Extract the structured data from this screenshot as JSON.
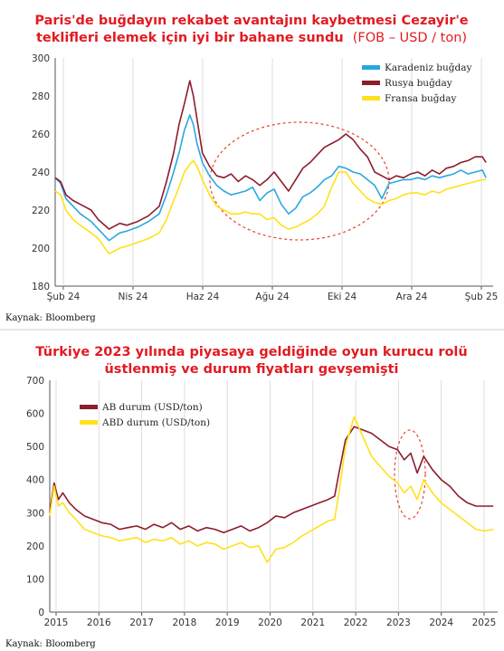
{
  "chart_data": [
    {
      "type": "line",
      "title": "Paris'de buğdayın rekabet avantajını kaybetmesi Cezayir'e",
      "title_line2": "teklifleri elemek için iyi bir bahane sundu",
      "title_suffix": "(FOB – USD / ton)",
      "source": "Kaynak: Bloomberg",
      "ylim": [
        180,
        300
      ],
      "yticks": [
        180,
        200,
        220,
        240,
        260,
        280,
        300
      ],
      "xticks": [
        "Şub 24",
        "Nis 24",
        "Haz 24",
        "Ağu 24",
        "Eki 24",
        "Ara 24",
        "Şub 25"
      ],
      "xlim": [
        0,
        12.2
      ],
      "grid": "vertical",
      "legend_position": "top-right",
      "annotation": "dashed ellipse highlighting Jul 24 – Dec 24",
      "series": [
        {
          "name": "Karadeniz buğday",
          "color": "#29a8e0",
          "x": [
            0.0,
            0.15,
            0.3,
            0.5,
            0.7,
            1.0,
            1.2,
            1.5,
            1.8,
            2.0,
            2.3,
            2.6,
            2.9,
            3.1,
            3.3,
            3.45,
            3.6,
            3.75,
            3.85,
            3.95,
            4.1,
            4.3,
            4.5,
            4.7,
            4.9,
            5.1,
            5.3,
            5.5,
            5.7,
            5.9,
            6.1,
            6.3,
            6.5,
            6.7,
            6.9,
            7.1,
            7.3,
            7.5,
            7.7,
            7.9,
            8.1,
            8.3,
            8.5,
            8.7,
            8.9,
            9.1,
            9.3,
            9.5,
            9.7,
            9.9,
            10.1,
            10.3,
            10.5,
            10.7,
            10.9,
            11.1,
            11.3,
            11.5,
            11.7,
            11.9,
            12.0
          ],
          "y": [
            237,
            234,
            226,
            222,
            218,
            214,
            210,
            204,
            208,
            209,
            211,
            214,
            218,
            228,
            240,
            250,
            262,
            270,
            265,
            255,
            245,
            238,
            233,
            230,
            228,
            229,
            230,
            232,
            225,
            229,
            231,
            223,
            218,
            221,
            227,
            229,
            232,
            236,
            238,
            243,
            242,
            240,
            239,
            236,
            233,
            226,
            234,
            235,
            236,
            236,
            237,
            236,
            238,
            237,
            238,
            239,
            241,
            239,
            240,
            241,
            237
          ]
        },
        {
          "name": "Rusya buğday",
          "color": "#8c1d2c",
          "x": [
            0.0,
            0.15,
            0.3,
            0.5,
            0.7,
            1.0,
            1.2,
            1.5,
            1.8,
            2.0,
            2.3,
            2.6,
            2.9,
            3.1,
            3.3,
            3.45,
            3.6,
            3.75,
            3.85,
            3.95,
            4.1,
            4.3,
            4.5,
            4.7,
            4.9,
            5.1,
            5.3,
            5.5,
            5.7,
            5.9,
            6.1,
            6.3,
            6.5,
            6.7,
            6.9,
            7.1,
            7.3,
            7.5,
            7.7,
            7.9,
            8.1,
            8.3,
            8.5,
            8.7,
            8.9,
            9.1,
            9.3,
            9.5,
            9.7,
            9.9,
            10.1,
            10.3,
            10.5,
            10.7,
            10.9,
            11.1,
            11.3,
            11.5,
            11.7,
            11.9,
            12.0
          ],
          "y": [
            237,
            235,
            228,
            225,
            223,
            220,
            215,
            210,
            213,
            212,
            214,
            217,
            222,
            235,
            250,
            265,
            276,
            288,
            280,
            268,
            250,
            243,
            238,
            237,
            239,
            235,
            238,
            236,
            233,
            236,
            240,
            235,
            230,
            236,
            242,
            245,
            249,
            253,
            255,
            257,
            260,
            257,
            252,
            248,
            240,
            238,
            236,
            238,
            237,
            239,
            240,
            238,
            241,
            239,
            242,
            243,
            245,
            246,
            248,
            248,
            245
          ]
        },
        {
          "name": "Fransa buğday",
          "color": "#ffe11a",
          "x": [
            0.0,
            0.15,
            0.3,
            0.5,
            0.7,
            1.0,
            1.2,
            1.5,
            1.8,
            2.0,
            2.3,
            2.6,
            2.9,
            3.1,
            3.3,
            3.45,
            3.6,
            3.75,
            3.85,
            3.95,
            4.1,
            4.3,
            4.5,
            4.7,
            4.9,
            5.1,
            5.3,
            5.5,
            5.7,
            5.9,
            6.1,
            6.3,
            6.5,
            6.7,
            6.9,
            7.1,
            7.3,
            7.5,
            7.7,
            7.9,
            8.1,
            8.3,
            8.5,
            8.7,
            8.9,
            9.1,
            9.3,
            9.5,
            9.7,
            9.9,
            10.1,
            10.3,
            10.5,
            10.7,
            10.9,
            11.1,
            11.3,
            11.5,
            11.7,
            11.9,
            12.0
          ],
          "y": [
            230,
            228,
            220,
            215,
            212,
            208,
            205,
            197,
            200,
            201,
            203,
            205,
            208,
            215,
            225,
            232,
            240,
            244,
            246,
            243,
            236,
            228,
            222,
            220,
            218,
            218,
            219,
            218,
            218,
            215,
            216,
            212,
            210,
            211,
            213,
            215,
            218,
            222,
            232,
            240,
            240,
            234,
            230,
            226,
            224,
            223,
            225,
            226,
            228,
            229,
            229,
            228,
            230,
            229,
            231,
            232,
            233,
            234,
            235,
            236,
            236
          ]
        }
      ]
    },
    {
      "type": "line",
      "title": "Türkiye 2023 yılında piyasaya geldiğinde oyun kurucu rolü",
      "title_line2": "üstlenmiş ve durum fiyatları gevşemişti",
      "source": "Kaynak: Bloomberg",
      "ylim": [
        0,
        700
      ],
      "yticks": [
        0,
        100,
        200,
        300,
        400,
        500,
        600,
        700
      ],
      "xticks": [
        "2015",
        "2016",
        "2017",
        "2018",
        "2019",
        "2020",
        "2021",
        "2022",
        "2023",
        "2024",
        "2025"
      ],
      "xlim": [
        2015,
        2025.3
      ],
      "grid": "vertical",
      "legend_position": "top-left",
      "annotation": "dashed ellipse highlighting mid-2023",
      "series": [
        {
          "name": "AB durum (USD/ton)",
          "color": "#8c1d2c",
          "x": [
            2015.0,
            2015.1,
            2015.2,
            2015.3,
            2015.45,
            2015.6,
            2015.8,
            2016.0,
            2016.2,
            2016.4,
            2016.6,
            2016.8,
            2017.0,
            2017.2,
            2017.4,
            2017.6,
            2017.8,
            2018.0,
            2018.2,
            2018.4,
            2018.6,
            2018.8,
            2019.0,
            2019.2,
            2019.4,
            2019.6,
            2019.8,
            2020.0,
            2020.2,
            2020.4,
            2020.6,
            2020.8,
            2021.0,
            2021.2,
            2021.4,
            2021.55,
            2021.65,
            2021.8,
            2022.0,
            2022.2,
            2022.4,
            2022.6,
            2022.8,
            2023.0,
            2023.15,
            2023.3,
            2023.45,
            2023.6,
            2023.8,
            2024.0,
            2024.2,
            2024.4,
            2024.6,
            2024.8,
            2025.0,
            2025.2
          ],
          "y": [
            300,
            390,
            340,
            360,
            330,
            310,
            290,
            280,
            270,
            265,
            250,
            255,
            260,
            250,
            265,
            255,
            270,
            250,
            260,
            245,
            255,
            250,
            240,
            250,
            260,
            245,
            255,
            270,
            290,
            285,
            300,
            310,
            320,
            330,
            340,
            350,
            420,
            520,
            560,
            550,
            540,
            520,
            500,
            490,
            460,
            480,
            420,
            470,
            430,
            400,
            380,
            350,
            330,
            320,
            320,
            320
          ]
        },
        {
          "name": "ABD durum (USD/ton)",
          "color": "#ffe11a",
          "x": [
            2015.0,
            2015.1,
            2015.2,
            2015.3,
            2015.45,
            2015.6,
            2015.8,
            2016.0,
            2016.2,
            2016.4,
            2016.6,
            2016.8,
            2017.0,
            2017.2,
            2017.4,
            2017.6,
            2017.8,
            2018.0,
            2018.2,
            2018.4,
            2018.6,
            2018.8,
            2019.0,
            2019.2,
            2019.4,
            2019.6,
            2019.8,
            2020.0,
            2020.2,
            2020.4,
            2020.6,
            2020.8,
            2021.0,
            2021.2,
            2021.4,
            2021.55,
            2021.65,
            2021.8,
            2022.0,
            2022.2,
            2022.4,
            2022.6,
            2022.8,
            2023.0,
            2023.15,
            2023.3,
            2023.45,
            2023.6,
            2023.8,
            2024.0,
            2024.2,
            2024.4,
            2024.6,
            2024.8,
            2025.0,
            2025.2
          ],
          "y": [
            290,
            380,
            320,
            330,
            300,
            280,
            250,
            240,
            230,
            225,
            215,
            220,
            225,
            210,
            220,
            215,
            225,
            205,
            215,
            200,
            210,
            205,
            190,
            200,
            210,
            195,
            200,
            150,
            190,
            195,
            210,
            230,
            245,
            260,
            275,
            280,
            360,
            500,
            590,
            530,
            470,
            440,
            410,
            390,
            360,
            380,
            340,
            400,
            360,
            330,
            310,
            290,
            270,
            250,
            245,
            250
          ]
        }
      ]
    }
  ]
}
